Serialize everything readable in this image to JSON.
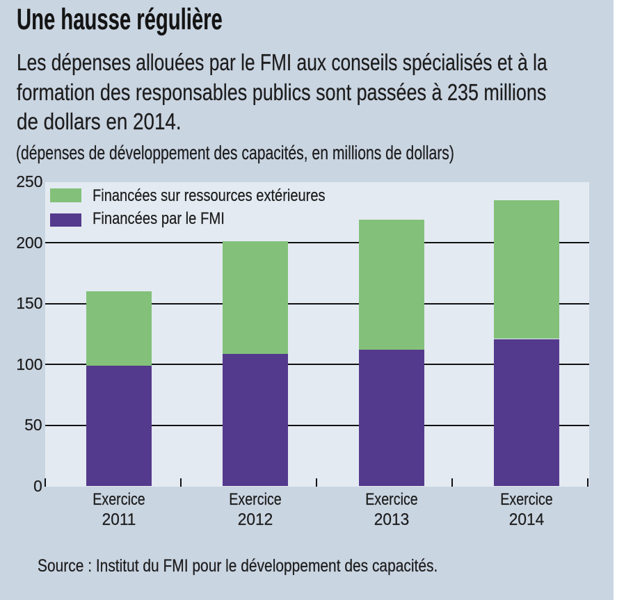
{
  "title": "Une hausse régulière",
  "subtitle_lines": [
    "Les dépenses allouées par le FMI aux conseils spécialisés et à la",
    "formation des responsables publics sont passées à 235 millions",
    "de dollars en 2014."
  ],
  "caption": "(dépenses de développement des capacités, en millions de dollars)",
  "source": "Source : Institut du FMI pour le développement des capacités.",
  "colors": {
    "background": "#cad5e2",
    "plot_background": "#e3eaf2",
    "external_green": "#83c17a",
    "imf_purple": "#543a8c",
    "text": "#1d1d1d",
    "gridline": "#111111"
  },
  "chart_data": {
    "type": "bar",
    "stacked": true,
    "title": "Une hausse régulière",
    "ylabel": "",
    "xlabel": "",
    "ylim": [
      0,
      250
    ],
    "yticks": [
      "0",
      "50",
      "100",
      "150",
      "200",
      "250"
    ],
    "grid": "horizontal",
    "legend_position": "top-left-inside",
    "categories": [
      {
        "prefix": "Exercice",
        "year": "2011"
      },
      {
        "prefix": "Exercice",
        "year": "2012"
      },
      {
        "prefix": "Exercice",
        "year": "2013"
      },
      {
        "prefix": "Exercice",
        "year": "2014"
      }
    ],
    "series": [
      {
        "name": "Financées par le FMI",
        "color": "#543a8c",
        "values": [
          99,
          109,
          112,
          121
        ]
      },
      {
        "name": "Financées sur ressources extérieures",
        "color": "#83c17a",
        "values": [
          61,
          92,
          107,
          114
        ]
      }
    ],
    "totals": [
      160,
      201,
      219,
      235
    ],
    "legend": [
      {
        "label": "Financées sur ressources extérieures",
        "color": "#83c17a"
      },
      {
        "label": "Financées par le FMI",
        "color": "#543a8c"
      }
    ]
  }
}
